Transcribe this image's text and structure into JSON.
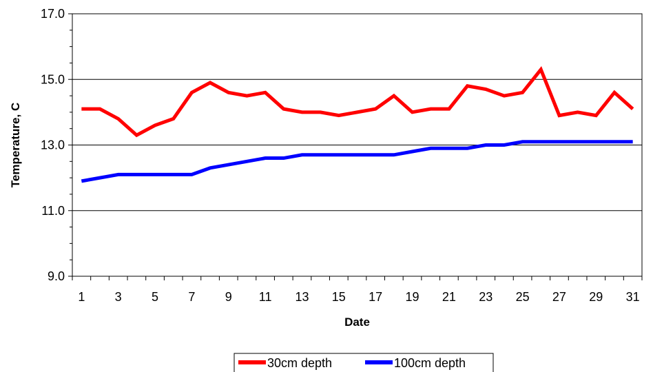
{
  "chart_data": {
    "type": "line",
    "title": "",
    "xlabel": "Date",
    "ylabel": "Temperature, C",
    "x": [
      1,
      2,
      3,
      4,
      5,
      6,
      7,
      8,
      9,
      10,
      11,
      12,
      13,
      14,
      15,
      16,
      17,
      18,
      19,
      20,
      21,
      22,
      23,
      24,
      25,
      26,
      27,
      28,
      29,
      30,
      31
    ],
    "x_tick_labels": [
      "1",
      "3",
      "5",
      "7",
      "9",
      "11",
      "13",
      "15",
      "17",
      "19",
      "21",
      "23",
      "25",
      "27",
      "29",
      "31"
    ],
    "ylim": [
      9.0,
      17.0
    ],
    "y_tick_labels": [
      "9.0",
      "11.0",
      "13.0",
      "15.0",
      "17.0"
    ],
    "grid": "horizontal major",
    "legend_position": "bottom",
    "series": [
      {
        "name": "30cm depth",
        "color": "#ff0000",
        "values": [
          14.1,
          14.1,
          13.8,
          13.3,
          13.6,
          13.8,
          14.6,
          14.9,
          14.6,
          14.5,
          14.6,
          14.1,
          14.0,
          14.0,
          13.9,
          14.0,
          14.1,
          14.5,
          14.0,
          14.1,
          14.1,
          14.8,
          14.7,
          14.5,
          14.6,
          15.3,
          13.9,
          14.0,
          13.9,
          14.6,
          14.1
        ]
      },
      {
        "name": "100cm depth",
        "color": "#0000ff",
        "values": [
          11.9,
          12.0,
          12.1,
          12.1,
          12.1,
          12.1,
          12.1,
          12.3,
          12.4,
          12.5,
          12.6,
          12.6,
          12.7,
          12.7,
          12.7,
          12.7,
          12.7,
          12.7,
          12.8,
          12.9,
          12.9,
          12.9,
          13.0,
          13.0,
          13.1,
          13.1,
          13.1,
          13.1,
          13.1,
          13.1,
          13.1
        ]
      }
    ]
  }
}
